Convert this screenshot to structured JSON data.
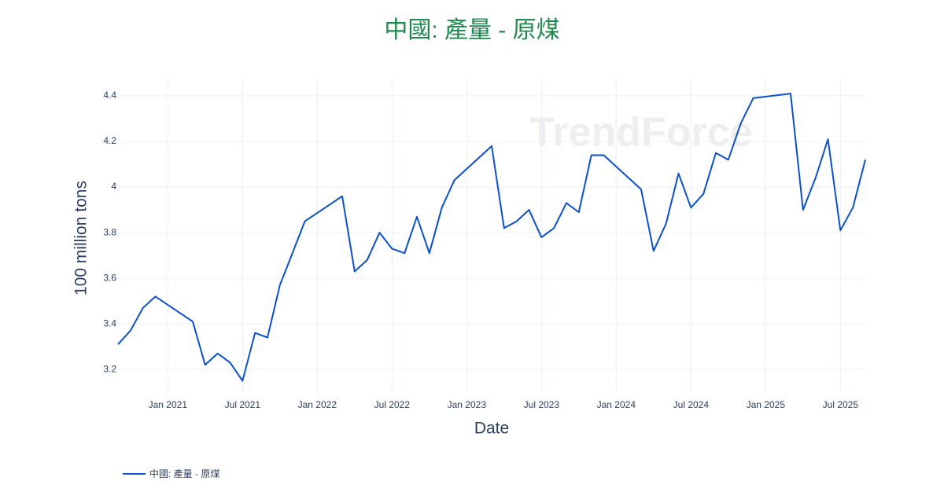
{
  "chart_data": {
    "type": "line",
    "title": "中國: 產量 - 原煤",
    "x_label": "Date",
    "y_label": "100 million tons",
    "watermark": "TrendForce",
    "x": [
      "2020-09",
      "2020-10",
      "2020-11",
      "2020-12",
      "2021-03",
      "2021-04",
      "2021-05",
      "2021-06",
      "2021-07",
      "2021-08",
      "2021-09",
      "2021-10",
      "2021-11",
      "2021-12",
      "2022-03",
      "2022-04",
      "2022-05",
      "2022-06",
      "2022-07",
      "2022-08",
      "2022-09",
      "2022-10",
      "2022-11",
      "2022-12",
      "2023-03",
      "2023-04",
      "2023-05",
      "2023-06",
      "2023-07",
      "2023-08",
      "2023-09",
      "2023-10",
      "2023-11",
      "2023-12",
      "2024-03",
      "2024-04",
      "2024-05",
      "2024-06",
      "2024-07",
      "2024-08",
      "2024-09",
      "2024-10",
      "2024-11",
      "2024-12",
      "2025-03",
      "2025-04",
      "2025-05",
      "2025-06",
      "2025-07",
      "2025-08",
      "2025-09"
    ],
    "series": [
      {
        "name": "中國: 產量 - 原煤",
        "color": "#0b4fcc",
        "values": [
          3.31,
          3.37,
          3.47,
          3.52,
          3.41,
          3.22,
          3.27,
          3.23,
          3.15,
          3.36,
          3.34,
          3.57,
          3.71,
          3.85,
          3.96,
          3.63,
          3.68,
          3.8,
          3.73,
          3.71,
          3.87,
          3.71,
          3.91,
          4.03,
          4.18,
          3.82,
          3.85,
          3.9,
          3.78,
          3.82,
          3.93,
          3.89,
          4.14,
          4.14,
          3.99,
          3.72,
          3.84,
          4.06,
          3.91,
          3.97,
          4.15,
          4.12,
          4.28,
          4.39,
          4.41,
          3.9,
          4.04,
          4.21,
          3.81,
          3.91,
          4.12
        ]
      }
    ],
    "xlim": [
      "2020-09",
      "2025-09"
    ],
    "xticks": [
      {
        "value": "2021-01",
        "label": "Jan 2021"
      },
      {
        "value": "2021-07",
        "label": "Jul 2021"
      },
      {
        "value": "2022-01",
        "label": "Jan 2022"
      },
      {
        "value": "2022-07",
        "label": "Jul 2022"
      },
      {
        "value": "2023-01",
        "label": "Jan 2023"
      },
      {
        "value": "2023-07",
        "label": "Jul 2023"
      },
      {
        "value": "2024-01",
        "label": "Jan 2024"
      },
      {
        "value": "2024-07",
        "label": "Jul 2024"
      },
      {
        "value": "2025-01",
        "label": "Jan 2025"
      },
      {
        "value": "2025-07",
        "label": "Jul 2025"
      }
    ],
    "ylim": [
      3.097,
      4.476
    ],
    "yticks": [
      3.2,
      3.4,
      3.6,
      3.8,
      4,
      4.2,
      4.4
    ],
    "grid": true,
    "title_color": "#1e8a4f"
  }
}
